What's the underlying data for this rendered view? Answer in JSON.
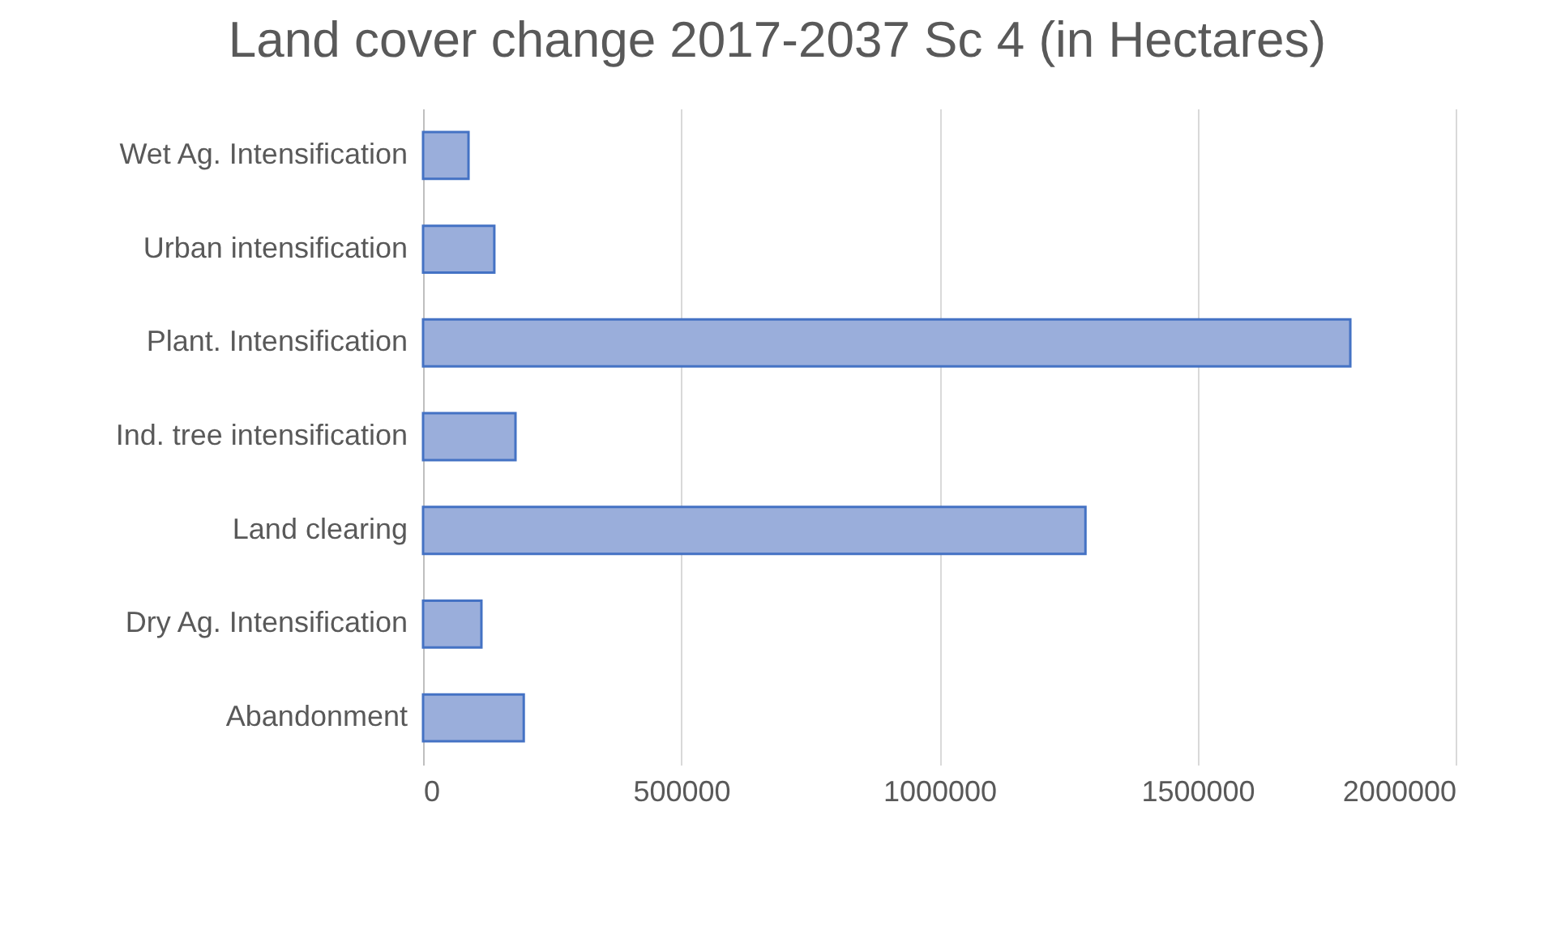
{
  "chart_data": {
    "type": "bar",
    "orientation": "horizontal",
    "title": "Land cover change 2017-2037 Sc 4 (in Hectares)",
    "categories": [
      "Wet Ag. Intensification",
      "Urban intensification",
      "Plant. Intensification",
      "Ind. tree intensification",
      "Land clearing",
      "Dry Ag. Intensification",
      "Abandonment"
    ],
    "values": [
      88000,
      138000,
      1796000,
      179000,
      1283000,
      113000,
      195000
    ],
    "color": "#9aaedb",
    "xlim": [
      0,
      2000000
    ],
    "xticks": [
      0,
      500000,
      1000000,
      1500000,
      2000000
    ],
    "grid": "x"
  }
}
